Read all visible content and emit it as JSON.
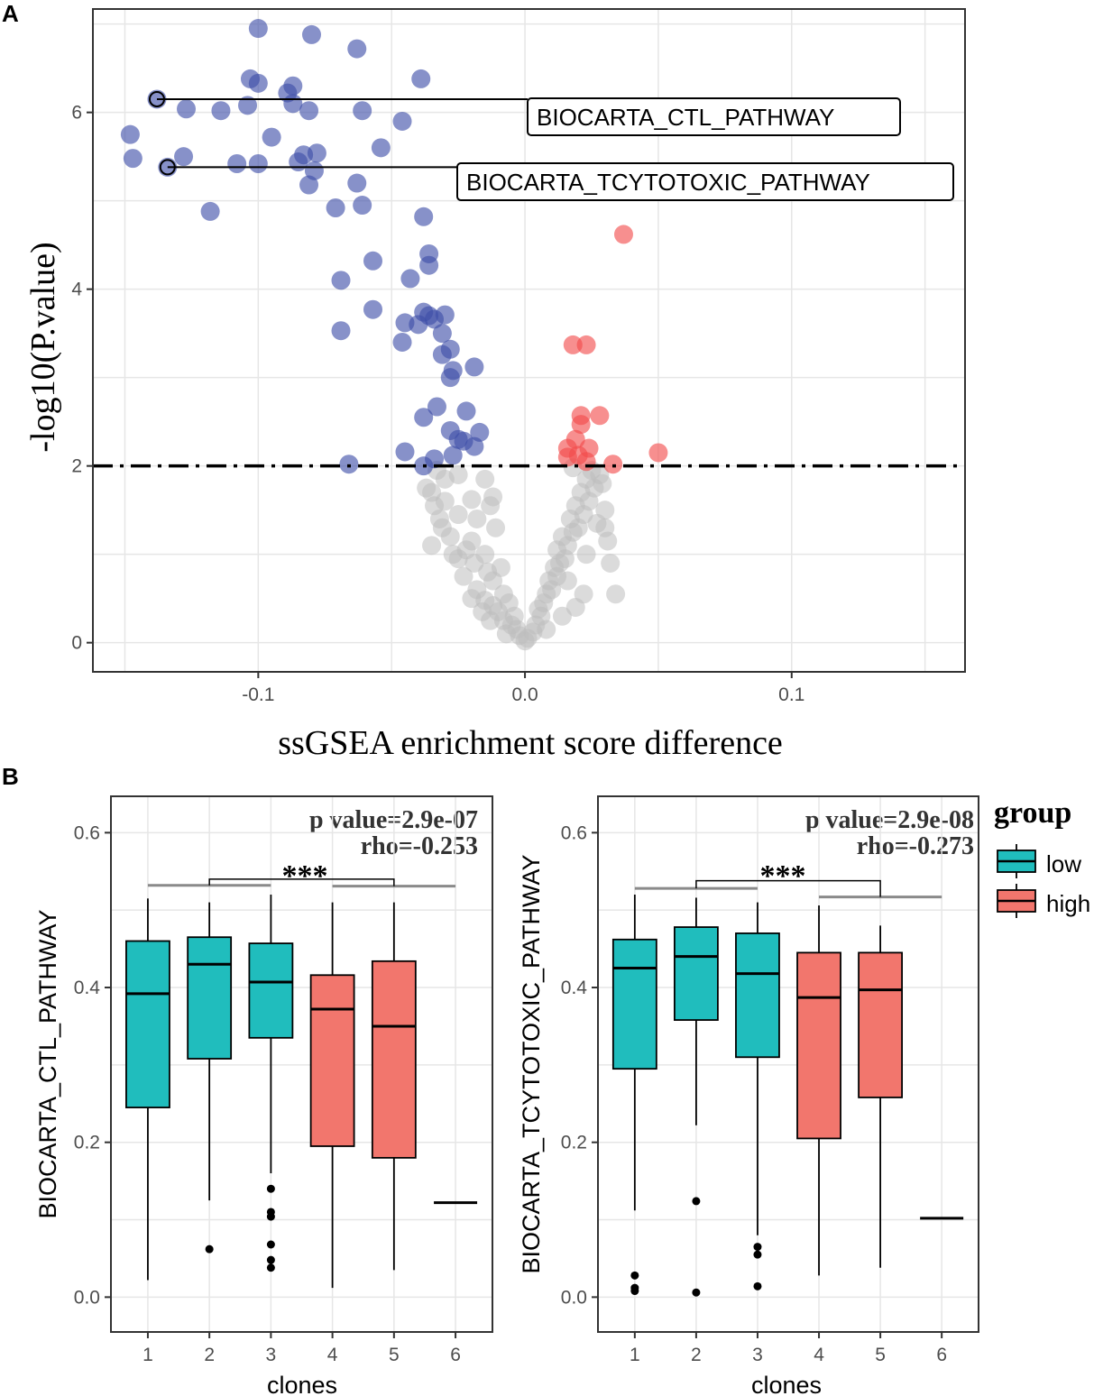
{
  "panel_labels": {
    "a": "A",
    "b": "B"
  },
  "legend": {
    "title": "group",
    "items": [
      {
        "label": "low",
        "color": "#20BDBD"
      },
      {
        "label": "high",
        "color": "#F2766D"
      }
    ]
  },
  "colors": {
    "down": "#3E4EA8",
    "up": "#F24B4B",
    "ns": "#BDBDBD",
    "low": "#20BDBD",
    "high": "#F2766D",
    "bracket": "#8A8A8A"
  },
  "chart_data": [
    {
      "id": "volcano",
      "type": "scatter",
      "title": "",
      "xlabel": "ssGSEA enrichment score difference",
      "ylabel": "-log10(P.value)",
      "xlim": [
        -0.162,
        0.165
      ],
      "ylim": [
        -0.33,
        7.17
      ],
      "xticks": [
        -0.1,
        0.0,
        0.1
      ],
      "xtick_labels": [
        "-0.1",
        "0.0",
        "0.1"
      ],
      "yticks": [
        0,
        2,
        4,
        6
      ],
      "ytick_labels": [
        "0",
        "2",
        "4",
        "6"
      ],
      "threshold_y": 2,
      "labels": [
        {
          "text": "BIOCARTA_CTL_PATHWAY",
          "x": -0.138,
          "y": 6.15
        },
        {
          "text": "BIOCARTA_TCYTOTOXIC_PATHWAY",
          "x": -0.134,
          "y": 5.38
        }
      ],
      "series": [
        {
          "name": "down",
          "points": [
            [
              -0.1,
              6.95
            ],
            [
              -0.08,
              6.88
            ],
            [
              -0.103,
              6.38
            ],
            [
              -0.1,
              6.33
            ],
            [
              -0.063,
              6.72
            ],
            [
              -0.039,
              6.38
            ],
            [
              -0.087,
              6.3
            ],
            [
              -0.089,
              6.22
            ],
            [
              -0.087,
              6.1
            ],
            [
              -0.081,
              6.02
            ],
            [
              -0.127,
              6.04
            ],
            [
              -0.114,
              6.02
            ],
            [
              -0.104,
              6.08
            ],
            [
              -0.061,
              6.02
            ],
            [
              -0.138,
              6.15
            ],
            [
              -0.046,
              5.9
            ],
            [
              -0.148,
              5.75
            ],
            [
              -0.095,
              5.72
            ],
            [
              -0.054,
              5.6
            ],
            [
              -0.147,
              5.48
            ],
            [
              -0.128,
              5.5
            ],
            [
              -0.083,
              5.52
            ],
            [
              -0.078,
              5.54
            ],
            [
              -0.085,
              5.44
            ],
            [
              -0.134,
              5.38
            ],
            [
              -0.108,
              5.42
            ],
            [
              -0.1,
              5.42
            ],
            [
              -0.079,
              5.34
            ],
            [
              -0.081,
              5.18
            ],
            [
              -0.063,
              5.2
            ],
            [
              -0.061,
              4.95
            ],
            [
              -0.071,
              4.92
            ],
            [
              -0.118,
              4.88
            ],
            [
              -0.038,
              4.82
            ],
            [
              -0.036,
              4.4
            ],
            [
              -0.057,
              4.32
            ],
            [
              -0.036,
              4.27
            ],
            [
              -0.069,
              4.1
            ],
            [
              -0.043,
              4.12
            ],
            [
              -0.057,
              3.77
            ],
            [
              -0.038,
              3.74
            ],
            [
              -0.036,
              3.7
            ],
            [
              -0.03,
              3.71
            ],
            [
              -0.034,
              3.66
            ],
            [
              -0.045,
              3.62
            ],
            [
              -0.04,
              3.6
            ],
            [
              -0.031,
              3.5
            ],
            [
              -0.069,
              3.53
            ],
            [
              -0.046,
              3.4
            ],
            [
              -0.028,
              3.32
            ],
            [
              -0.031,
              3.26
            ],
            [
              -0.027,
              3.08
            ],
            [
              -0.019,
              3.12
            ],
            [
              -0.028,
              3.0
            ],
            [
              -0.033,
              2.67
            ],
            [
              -0.022,
              2.62
            ],
            [
              -0.038,
              2.55
            ],
            [
              -0.028,
              2.4
            ],
            [
              -0.017,
              2.38
            ],
            [
              -0.025,
              2.3
            ],
            [
              -0.023,
              2.28
            ],
            [
              -0.019,
              2.22
            ],
            [
              -0.045,
              2.16
            ],
            [
              -0.027,
              2.12
            ],
            [
              -0.034,
              2.08
            ],
            [
              -0.066,
              2.02
            ],
            [
              -0.038,
              2.0
            ]
          ]
        },
        {
          "name": "up",
          "points": [
            [
              0.037,
              4.62
            ],
            [
              0.018,
              3.37
            ],
            [
              0.023,
              3.37
            ],
            [
              0.028,
              2.57
            ],
            [
              0.021,
              2.57
            ],
            [
              0.021,
              2.47
            ],
            [
              0.019,
              2.3
            ],
            [
              0.016,
              2.2
            ],
            [
              0.024,
              2.2
            ],
            [
              0.05,
              2.15
            ],
            [
              0.02,
              2.12
            ],
            [
              0.016,
              2.1
            ],
            [
              0.023,
              2.05
            ],
            [
              0.033,
              2.02
            ]
          ]
        },
        {
          "name": "ns",
          "points": [
            [
              -0.03,
              1.85
            ],
            [
              -0.025,
              1.9
            ],
            [
              -0.015,
              1.85
            ],
            [
              -0.035,
              1.7
            ],
            [
              -0.012,
              1.65
            ],
            [
              -0.02,
              1.62
            ],
            [
              -0.03,
              1.6
            ],
            [
              -0.013,
              1.55
            ],
            [
              -0.025,
              1.45
            ],
            [
              -0.032,
              1.4
            ],
            [
              -0.018,
              1.4
            ],
            [
              -0.011,
              1.3
            ],
            [
              -0.028,
              1.2
            ],
            [
              -0.02,
              1.15
            ],
            [
              -0.035,
              1.1
            ],
            [
              -0.022,
              1.05
            ],
            [
              -0.015,
              1.0
            ],
            [
              -0.025,
              0.95
            ],
            [
              -0.019,
              0.9
            ],
            [
              -0.009,
              0.85
            ],
            [
              -0.014,
              0.8
            ],
            [
              -0.012,
              0.7
            ],
            [
              -0.018,
              0.6
            ],
            [
              -0.008,
              0.55
            ],
            [
              -0.015,
              0.48
            ],
            [
              -0.006,
              0.45
            ],
            [
              -0.012,
              0.42
            ],
            [
              -0.01,
              0.35
            ],
            [
              -0.004,
              0.3
            ],
            [
              -0.008,
              0.25
            ],
            [
              -0.005,
              0.2
            ],
            [
              -0.003,
              0.15
            ],
            [
              -0.002,
              0.08
            ],
            [
              0.0,
              0.02
            ],
            [
              0.001,
              0.05
            ],
            [
              0.003,
              0.12
            ],
            [
              0.004,
              0.2
            ],
            [
              0.006,
              0.3
            ],
            [
              0.005,
              0.38
            ],
            [
              0.007,
              0.45
            ],
            [
              0.008,
              0.55
            ],
            [
              0.01,
              0.6
            ],
            [
              0.009,
              0.7
            ],
            [
              0.012,
              0.75
            ],
            [
              0.011,
              0.85
            ],
            [
              0.013,
              0.9
            ],
            [
              0.015,
              0.95
            ],
            [
              0.012,
              1.05
            ],
            [
              0.016,
              1.1
            ],
            [
              0.014,
              1.2
            ],
            [
              0.018,
              1.25
            ],
            [
              0.02,
              1.3
            ],
            [
              0.017,
              1.4
            ],
            [
              0.022,
              1.45
            ],
            [
              0.019,
              1.55
            ],
            [
              0.024,
              1.6
            ],
            [
              0.021,
              1.7
            ],
            [
              0.026,
              1.75
            ],
            [
              0.023,
              1.85
            ],
            [
              0.028,
              1.9
            ],
            [
              0.025,
              1.95
            ],
            [
              0.03,
              1.5
            ],
            [
              0.027,
              1.35
            ],
            [
              0.031,
              1.15
            ],
            [
              0.023,
              1.0
            ],
            [
              0.032,
              0.9
            ],
            [
              0.016,
              0.7
            ],
            [
              0.022,
              0.55
            ],
            [
              0.034,
              0.55
            ],
            [
              0.019,
              0.4
            ],
            [
              0.014,
              0.3
            ],
            [
              0.008,
              0.15
            ],
            [
              -0.007,
              0.1
            ],
            [
              -0.013,
              0.25
            ],
            [
              -0.016,
              0.35
            ],
            [
              -0.02,
              0.5
            ],
            [
              -0.023,
              0.75
            ],
            [
              -0.027,
              1.0
            ],
            [
              -0.031,
              1.3
            ],
            [
              -0.034,
              1.55
            ],
            [
              -0.037,
              1.75
            ],
            [
              -0.033,
              1.95
            ],
            [
              0.018,
              1.98
            ],
            [
              0.029,
              1.8
            ],
            [
              0.03,
              1.3
            ]
          ]
        }
      ]
    },
    {
      "id": "box-ctl",
      "type": "box",
      "title": "",
      "xlabel": "clones",
      "ylabel": "BIOCARTA_CTL_PATHWAY",
      "ylim": [
        -0.045,
        0.647
      ],
      "yticks": [
        0.0,
        0.2,
        0.4,
        0.6
      ],
      "ytick_labels": [
        "0.0",
        "0.2",
        "0.4",
        "0.6"
      ],
      "categories": [
        "1",
        "2",
        "3",
        "4",
        "5",
        "6"
      ],
      "annotation": {
        "pvalue": "p value=2.9e-07",
        "rho": "rho=-0.253",
        "signif": "***"
      },
      "brackets": {
        "left_group": [
          1,
          3
        ],
        "right_group": [
          4,
          6
        ],
        "left_y": 0.532,
        "right_y": 0.531,
        "top_y": 0.54
      },
      "boxes": [
        {
          "clone": 1,
          "group": "low",
          "lower_whisker": 0.022,
          "q1": 0.245,
          "median": 0.392,
          "q3": 0.46,
          "upper_whisker": 0.515,
          "outliers": []
        },
        {
          "clone": 2,
          "group": "low",
          "lower_whisker": 0.125,
          "q1": 0.308,
          "median": 0.43,
          "q3": 0.465,
          "upper_whisker": 0.51,
          "outliers": [
            0.062
          ]
        },
        {
          "clone": 3,
          "group": "low",
          "lower_whisker": 0.16,
          "q1": 0.335,
          "median": 0.407,
          "q3": 0.457,
          "upper_whisker": 0.52,
          "outliers": [
            0.14,
            0.11,
            0.104,
            0.068,
            0.048,
            0.038
          ]
        },
        {
          "clone": 4,
          "group": "high",
          "lower_whisker": 0.012,
          "q1": 0.195,
          "median": 0.372,
          "q3": 0.416,
          "upper_whisker": 0.51,
          "outliers": []
        },
        {
          "clone": 5,
          "group": "high",
          "lower_whisker": 0.035,
          "q1": 0.18,
          "median": 0.35,
          "q3": 0.434,
          "upper_whisker": 0.51,
          "outliers": []
        },
        {
          "clone": 6,
          "group": "high",
          "lower_whisker": 0.122,
          "q1": 0.122,
          "median": 0.122,
          "q3": 0.122,
          "upper_whisker": 0.122,
          "outliers": []
        }
      ]
    },
    {
      "id": "box-tcyto",
      "type": "box",
      "title": "",
      "xlabel": "clones",
      "ylabel": "BIOCARTA_TCYTOTOXIC_PATHWAY",
      "ylim": [
        -0.045,
        0.647
      ],
      "yticks": [
        0.0,
        0.2,
        0.4,
        0.6
      ],
      "ytick_labels": [
        "0.0",
        "0.2",
        "0.4",
        "0.6"
      ],
      "categories": [
        "1",
        "2",
        "3",
        "4",
        "5",
        "6"
      ],
      "annotation": {
        "pvalue": "p value=2.9e-08",
        "rho": "rho=-0.273",
        "signif": "***"
      },
      "brackets": {
        "left_group": [
          1,
          3
        ],
        "right_group": [
          4,
          6
        ],
        "left_y": 0.528,
        "right_y": 0.517,
        "top_y": 0.538
      },
      "boxes": [
        {
          "clone": 1,
          "group": "low",
          "lower_whisker": 0.112,
          "q1": 0.295,
          "median": 0.425,
          "q3": 0.462,
          "upper_whisker": 0.52,
          "outliers": [
            0.028,
            0.012,
            0.008
          ]
        },
        {
          "clone": 2,
          "group": "low",
          "lower_whisker": 0.222,
          "q1": 0.358,
          "median": 0.44,
          "q3": 0.478,
          "upper_whisker": 0.516,
          "outliers": [
            0.124,
            0.006
          ]
        },
        {
          "clone": 3,
          "group": "low",
          "lower_whisker": 0.08,
          "q1": 0.31,
          "median": 0.418,
          "q3": 0.47,
          "upper_whisker": 0.51,
          "outliers": [
            0.065,
            0.055,
            0.014
          ]
        },
        {
          "clone": 4,
          "group": "high",
          "lower_whisker": 0.028,
          "q1": 0.205,
          "median": 0.387,
          "q3": 0.445,
          "upper_whisker": 0.506,
          "outliers": []
        },
        {
          "clone": 5,
          "group": "high",
          "lower_whisker": 0.038,
          "q1": 0.258,
          "median": 0.397,
          "q3": 0.445,
          "upper_whisker": 0.48,
          "outliers": []
        },
        {
          "clone": 6,
          "group": "high",
          "lower_whisker": 0.102,
          "q1": 0.102,
          "median": 0.102,
          "q3": 0.102,
          "upper_whisker": 0.102,
          "outliers": []
        }
      ]
    }
  ]
}
